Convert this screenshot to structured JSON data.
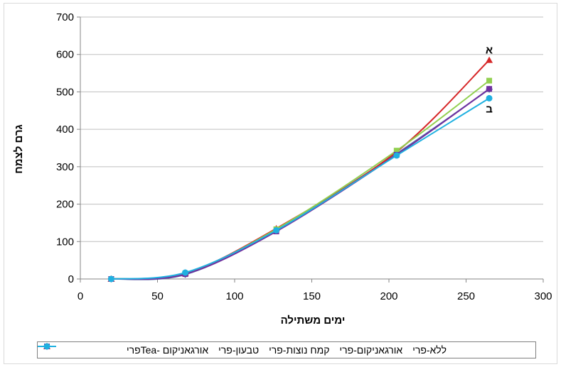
{
  "chart_data": {
    "type": "line",
    "xlabel": "ימים משתילה",
    "ylabel": "גרם לצמח",
    "xlim": [
      0,
      300
    ],
    "ylim": [
      0,
      700
    ],
    "xticks": [
      0,
      50,
      100,
      150,
      200,
      250,
      300
    ],
    "yticks": [
      0,
      100,
      200,
      300,
      400,
      500,
      600,
      700
    ],
    "grid": "horizontal",
    "legend_position": "bottom",
    "x": [
      20,
      68,
      127,
      205,
      265
    ],
    "series": [
      {
        "name": "ללא-פרי",
        "color": "#4f6fa8",
        "marker": "diamond",
        "values": [
          0,
          12,
          130,
          335,
          507
        ]
      },
      {
        "name": "אורגאניקום-פרי",
        "color": "#d62728",
        "marker": "triangle",
        "values": [
          0,
          15,
          135,
          340,
          585
        ]
      },
      {
        "name": "קמח נוצות-פרי",
        "color": "#92d050",
        "marker": "square",
        "values": [
          0,
          15,
          133,
          343,
          530
        ]
      },
      {
        "name": "טבעון-פרי",
        "color": "#7030a0",
        "marker": "square",
        "values": [
          0,
          13,
          127,
          332,
          508
        ]
      },
      {
        "name": "אורגאניקום -Teaפרי",
        "color": "#1fb0e0",
        "marker": "circle",
        "values": [
          0,
          17,
          130,
          330,
          483
        ]
      }
    ],
    "annotations": [
      {
        "text": "א",
        "x": 265,
        "y": 585
      },
      {
        "text": "ב",
        "x": 265,
        "y": 483
      }
    ]
  }
}
